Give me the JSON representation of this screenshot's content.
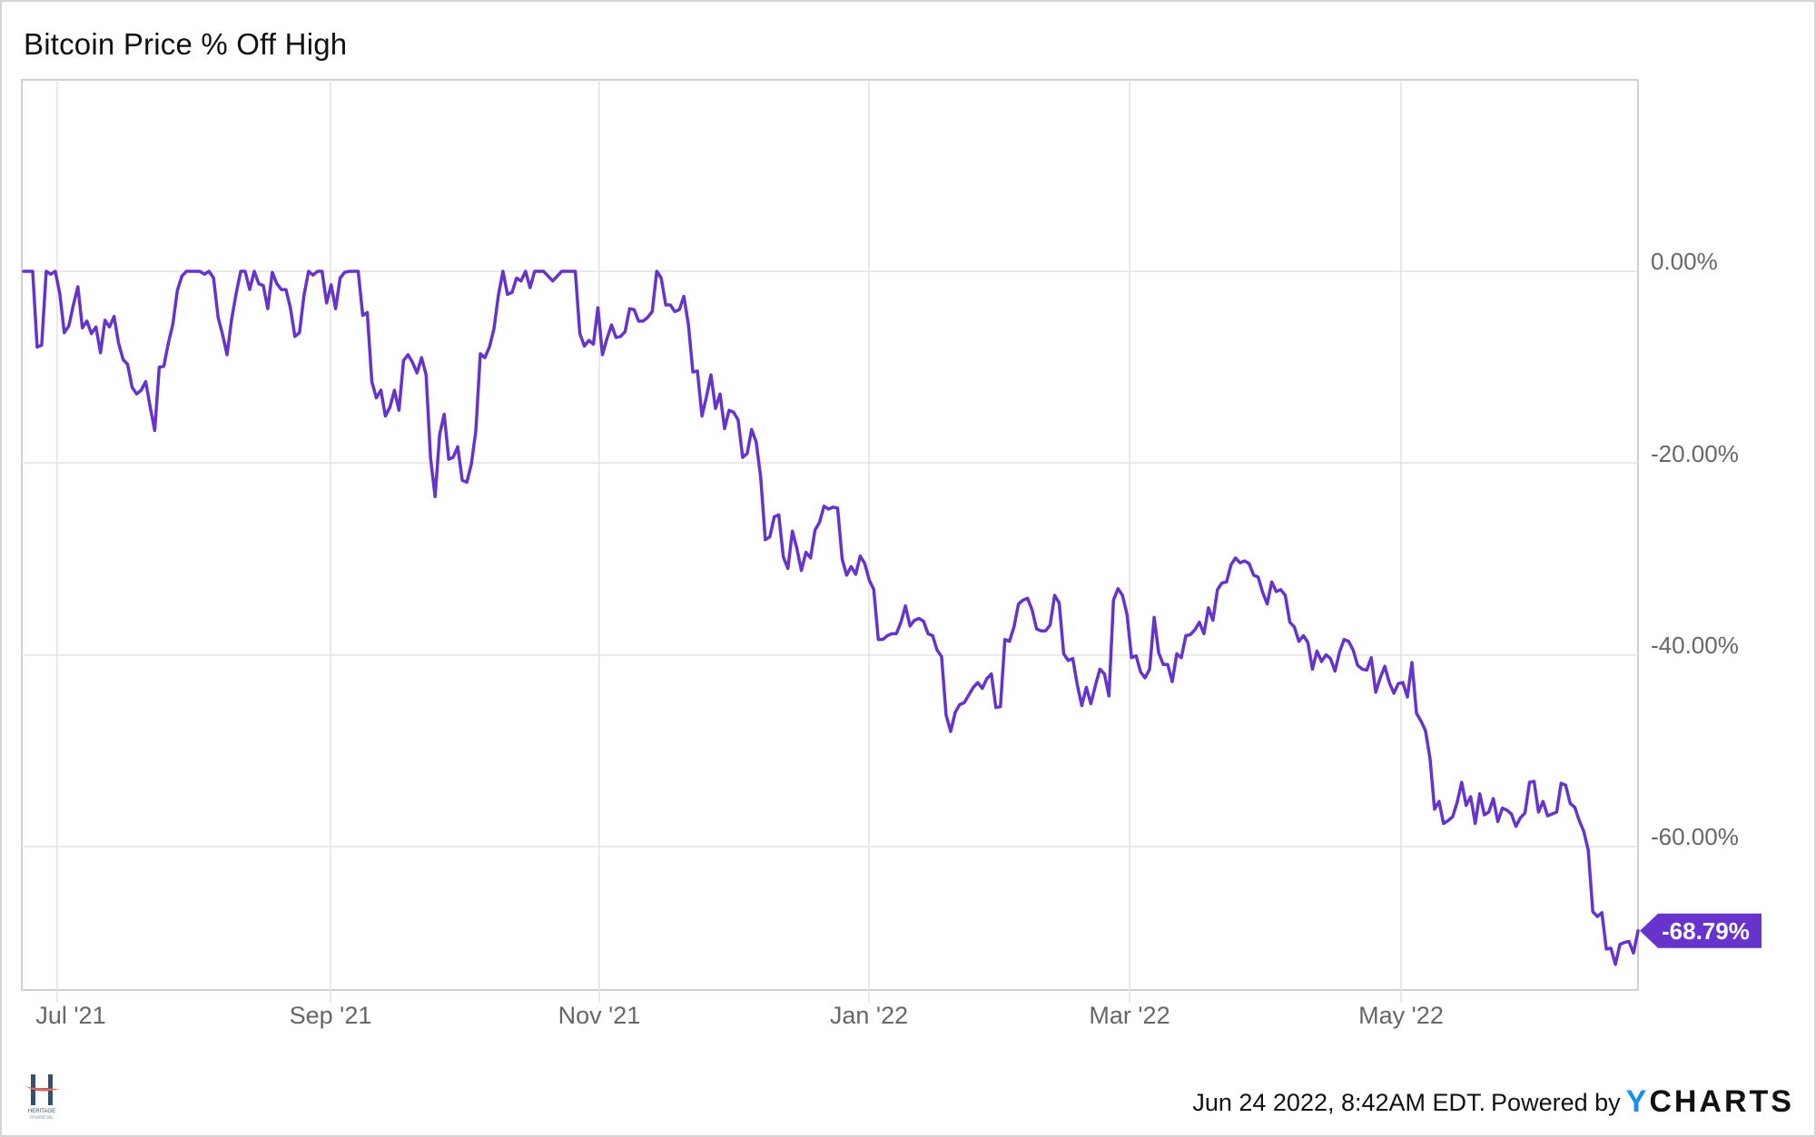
{
  "title": "Bitcoin Price % Off High",
  "footer": {
    "timestamp": "Jun 24 2022, 8:42AM EDT.",
    "powered_by": "Powered by",
    "brand_y": "Y",
    "brand_rest": "CHARTS",
    "brand_color": "#1a8fe3"
  },
  "logo": {
    "name": "HERITAGE",
    "sub": "FINANCIAL",
    "primary_color": "#34506e",
    "accent_color": "#e8675a"
  },
  "colors": {
    "line": "#6633cc",
    "grid": "#e3e3e3",
    "axis_text": "#666666",
    "border": "#d4d4d4"
  },
  "last_value_label": "-68.79%",
  "chart_data": {
    "type": "line",
    "title": "Bitcoin Price % Off High",
    "xlabel": "",
    "ylabel": "",
    "ylim": [
      -75,
      20
    ],
    "grid": true,
    "legend": "none",
    "y_ticks": [
      "0.00%",
      "-20.00%",
      "-40.00%",
      "-60.00%"
    ],
    "y_tick_values": [
      0,
      -20,
      -40,
      -60
    ],
    "x_ticks": [
      "Jul '21",
      "Sep '21",
      "Nov '21",
      "Jan '22",
      "Mar '22",
      "May '22"
    ],
    "x_range": [
      "2021-06-24",
      "2022-06-23"
    ],
    "series": [
      {
        "name": "Bitcoin Price % Off High",
        "last_value": -68.79,
        "values": [
          0,
          0,
          0,
          -7.9,
          -7.7,
          0,
          -0.3,
          0,
          -2.3,
          -6.4,
          -5.7,
          -3.5,
          -1.6,
          -5.9,
          -5.2,
          -6.5,
          -5.8,
          -8.5,
          -5.1,
          -5.8,
          -4.7,
          -7.5,
          -9.2,
          -9.7,
          -12.1,
          -12.8,
          -12.4,
          -11.5,
          -14.2,
          -16.6,
          -10.0,
          -9.9,
          -7.5,
          -5.5,
          -2.0,
          -0.5,
          0,
          0,
          0,
          0,
          -0.3,
          0,
          -0.7,
          -4.8,
          -6.6,
          -8.7,
          -5.0,
          -2.3,
          0,
          0,
          -1.9,
          0,
          -1.3,
          -1.5,
          -3.9,
          -0.1,
          -1.3,
          -1.9,
          -1.9,
          -3.8,
          -6.8,
          -6.4,
          -2.5,
          0,
          -0.4,
          0,
          0,
          -3.3,
          -1.4,
          -3.9,
          -0.7,
          -0.1,
          0,
          0,
          0,
          -4.6,
          -4.3,
          -11.5,
          -13.2,
          -12.4,
          -15.1,
          -14.2,
          -12.4,
          -14.5,
          -9.3,
          -8.7,
          -9.5,
          -10.6,
          -9.0,
          -10.8,
          -19.5,
          -23.5,
          -17.0,
          -14.9,
          -19.6,
          -19.4,
          -18.3,
          -21.8,
          -22.0,
          -20.1,
          -16.7,
          -8.6,
          -9.0,
          -7.9,
          -6.0,
          -2.5,
          0,
          -2.4,
          -2.2,
          -0.7,
          -1.0,
          0,
          -1.7,
          0,
          0,
          0,
          -0.5,
          -1.0,
          -0.5,
          0,
          0,
          0,
          0,
          -6.5,
          -7.8,
          -7.2,
          -7.6,
          -3.8,
          -8.7,
          -7.0,
          -5.6,
          -6.9,
          -6.8,
          -6.3,
          -3.9,
          -4.0,
          -5.2,
          -5.2,
          -4.8,
          -4.2,
          0,
          -0.7,
          -3.5,
          -3.5,
          -4.2,
          -4.0,
          -2.6,
          -5.5,
          -10.5,
          -10.4,
          -15.1,
          -13.1,
          -10.8,
          -14.3,
          -12.8,
          -16.4,
          -14.5,
          -14.7,
          -15.5,
          -19.4,
          -19.0,
          -16.5,
          -17.8,
          -21.5,
          -28.0,
          -27.7,
          -25.6,
          -25.4,
          -29.8,
          -31.0,
          -27.1,
          -28.9,
          -31.2,
          -29.3,
          -29.9,
          -27.0,
          -26.2,
          -24.5,
          -24.8,
          -24.6,
          -24.7,
          -30.0,
          -31.7,
          -30.8,
          -31.6,
          -29.7,
          -30.5,
          -32.2,
          -33.2,
          -38.4,
          -38.4,
          -38.0,
          -37.8,
          -37.8,
          -36.6,
          -34.9,
          -37.0,
          -36.4,
          -36.2,
          -36.5,
          -37.8,
          -38.0,
          -39.5,
          -40.2,
          -46.3,
          -48.0,
          -46.0,
          -45.2,
          -45.0,
          -44.2,
          -43.4,
          -42.9,
          -43.5,
          -42.5,
          -42.0,
          -45.5,
          -45.4,
          -38.4,
          -38.6,
          -37.1,
          -34.7,
          -34.3,
          -34.1,
          -35.3,
          -37.3,
          -37.5,
          -37.5,
          -36.9,
          -33.8,
          -34.6,
          -39.9,
          -40.6,
          -40.4,
          -43.1,
          -45.3,
          -43.4,
          -45.1,
          -43.2,
          -41.5,
          -42.0,
          -44.3,
          -34.3,
          -33.1,
          -33.8,
          -35.8,
          -40.3,
          -40.1,
          -41.8,
          -42.4,
          -41.5,
          -36.1,
          -39.8,
          -41.0,
          -41.0,
          -42.8,
          -39.9,
          -40.3,
          -38.0,
          -37.9,
          -37.4,
          -36.6,
          -37.8,
          -35.1,
          -36.4,
          -33.2,
          -32.5,
          -32.4,
          -30.6,
          -29.9,
          -30.4,
          -30.2,
          -30.5,
          -31.7,
          -31.9,
          -33.5,
          -34.7,
          -32.4,
          -33.4,
          -33.2,
          -33.8,
          -36.6,
          -37.1,
          -38.6,
          -38.0,
          -38.7,
          -41.5,
          -39.6,
          -40.7,
          -40.0,
          -40.4,
          -41.7,
          -39.7,
          -38.4,
          -38.6,
          -39.5,
          -41.1,
          -41.5,
          -41.6,
          -40.3,
          -43.9,
          -42.4,
          -41.2,
          -42.9,
          -44.0,
          -43.0,
          -42.9,
          -44.4,
          -40.8,
          -46.1,
          -46.9,
          -47.9,
          -50.8,
          -56.1,
          -55.3,
          -57.6,
          -57.3,
          -56.9,
          -55.4,
          -53.3,
          -55.7,
          -54.8,
          -57.6,
          -54.5,
          -56.7,
          -56.4,
          -55.0,
          -57.4,
          -56.0,
          -56.2,
          -56.6,
          -57.9,
          -57.0,
          -56.5,
          -53.3,
          -53.2,
          -56.4,
          -55.3,
          -56.8,
          -56.6,
          -56.4,
          -53.4,
          -53.6,
          -55.5,
          -55.9,
          -57.3,
          -58.4,
          -60.4,
          -66.8,
          -67.3,
          -66.9,
          -70.7,
          -70.6,
          -72.3,
          -70.2,
          -70.0,
          -69.9,
          -71.1,
          -68.79
        ]
      }
    ]
  }
}
